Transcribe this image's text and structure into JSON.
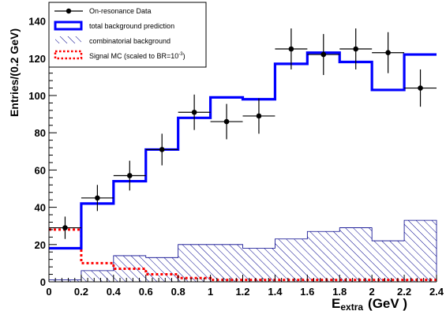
{
  "chart_data": {
    "type": "histogram",
    "xlabel": "E",
    "xlabel_sub": "extra",
    "xlabel_unit": "(GeV )",
    "ylabel": "Entries/(0.2 GeV)",
    "xlim": [
      0,
      2.4
    ],
    "ylim": [
      0,
      150
    ],
    "x_ticks": [
      "0",
      "0.2",
      "0.4",
      "0.6",
      "0.8",
      "1",
      "1.2",
      "1.4",
      "1.6",
      "1.8",
      "2",
      "2.2",
      "2.4"
    ],
    "y_ticks": [
      "0",
      "20",
      "40",
      "60",
      "80",
      "100",
      "120",
      "140"
    ],
    "bin_edges": [
      0,
      0.2,
      0.4,
      0.6,
      0.8,
      1.0,
      1.2,
      1.4,
      1.6,
      1.8,
      2.0,
      2.2,
      2.4
    ],
    "series": [
      {
        "name": "On-resonance Data",
        "kind": "points_with_errors",
        "x": [
          0.1,
          0.3,
          0.5,
          0.7,
          0.9,
          1.1,
          1.3,
          1.5,
          1.7,
          1.9,
          2.1,
          2.3
        ],
        "y": [
          29,
          45,
          57,
          71,
          91,
          86,
          89,
          125,
          122,
          125,
          123,
          104
        ],
        "yerr": [
          6,
          7,
          8,
          8.5,
          9.5,
          9.5,
          9.5,
          11,
          11,
          11,
          11,
          10
        ],
        "color": "#000000"
      },
      {
        "name": "total background prediction",
        "kind": "step",
        "values": [
          18,
          42,
          54,
          71,
          88,
          99,
          98,
          117,
          123,
          118,
          103,
          122
        ],
        "color": "#0000ff"
      },
      {
        "name": "combinatorial background",
        "kind": "hatched_step",
        "values": [
          1,
          6,
          14,
          13,
          20,
          20,
          18,
          23,
          27,
          29,
          22,
          33
        ],
        "color": "#00008b"
      },
      {
        "name": "Signal MC (scaled to BR=10",
        "name_sup": "-3",
        "name_tail": ")",
        "kind": "dotted_step",
        "values": [
          28,
          10,
          7,
          4,
          2,
          1,
          1,
          1,
          1,
          1,
          1,
          1
        ],
        "color": "#ff0000"
      }
    ]
  }
}
